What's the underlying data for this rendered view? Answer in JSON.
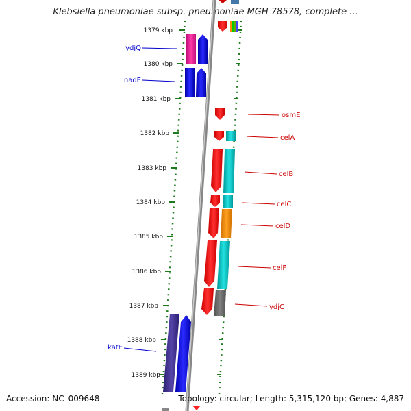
{
  "title": "Klebsiella pneumoniae subsp. pneumoniae MGH 78578, complete ...",
  "accession": "Accession: NC_009648",
  "topology": "Topology: circular; Length: 5,315,120 bp; Genes: 4,887",
  "colors": {
    "tick": "#1f7a1f",
    "left_label": "#0000cc",
    "right_label": "#cc0000",
    "backbone": "#888888"
  },
  "ticks": [
    {
      "label": "1379 kbp"
    },
    {
      "label": "1380 kbp"
    },
    {
      "label": "1381 kbp"
    },
    {
      "label": "1382 kbp"
    },
    {
      "label": "1383 kbp"
    },
    {
      "label": "1384 kbp"
    },
    {
      "label": "1385 kbp"
    },
    {
      "label": "1386 kbp"
    },
    {
      "label": "1387 kbp"
    },
    {
      "label": "1388 kbp"
    },
    {
      "label": "1389 kbp"
    }
  ],
  "left_genes": [
    {
      "label": "ydjQ",
      "color": "#ff1493",
      "color2": "#0000ff"
    },
    {
      "label": "nadE",
      "color": "#0000ff",
      "color2": "#0000ff"
    },
    {
      "label": "katE",
      "color": "#3f2f8f",
      "color2": "#0000ff"
    }
  ],
  "right_genes": [
    {
      "label": "osmE",
      "color": "#ff0000"
    },
    {
      "label": "celA",
      "color": "#00cccc"
    },
    {
      "label": "celB",
      "color": "#00cccc"
    },
    {
      "label": "celC",
      "color": "#00cccc"
    },
    {
      "label": "celD",
      "color": "#ff8c00"
    },
    {
      "label": "celF",
      "color": "#00cccc"
    },
    {
      "label": "ydjC",
      "color": "#666666"
    }
  ]
}
